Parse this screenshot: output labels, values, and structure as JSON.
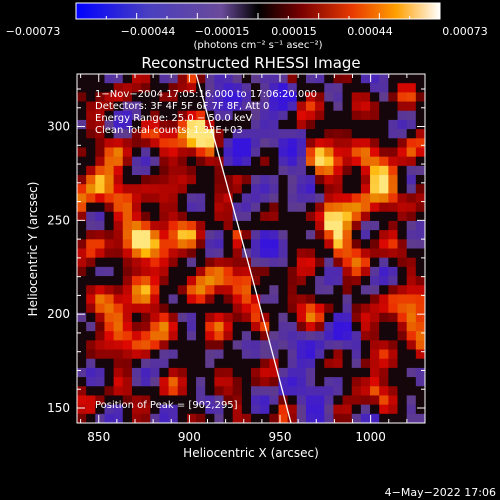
{
  "colorbar": {
    "tick_labels": [
      "−0.00073",
      "−0.00044",
      "−0.00015",
      "0.00015",
      "0.00044",
      "0.00073"
    ],
    "units_label": "(photons cm⁻² s⁻¹ asec⁻²)",
    "range": [
      -0.00073,
      0.00073
    ]
  },
  "chart_data": {
    "type": "heatmap",
    "title": "Reconstructed RHESSI Image",
    "xlabel": "Heliocentric X (arcsec)",
    "ylabel": "Heliocentric Y (arcsec)",
    "xlim": [
      838,
      1030
    ],
    "ylim": [
      142,
      328
    ],
    "x_ticks": [
      850,
      900,
      950,
      1000
    ],
    "y_ticks": [
      150,
      200,
      250,
      300
    ],
    "annotations": [
      "1−Nov−2004 17:05:16.000 to 17:06:20.000",
      "Detectors: 3F 4F 5F 6F 7F 8F, Att 0",
      "Energy Range: 25.0 − 50.0 keV",
      "Clean     Total counts: 1.32E+03"
    ],
    "peak_label": "Position of Peak = [902,295]",
    "peak_position": [
      902,
      295
    ]
  },
  "footer_timestamp": "4−May−2022 17:06"
}
